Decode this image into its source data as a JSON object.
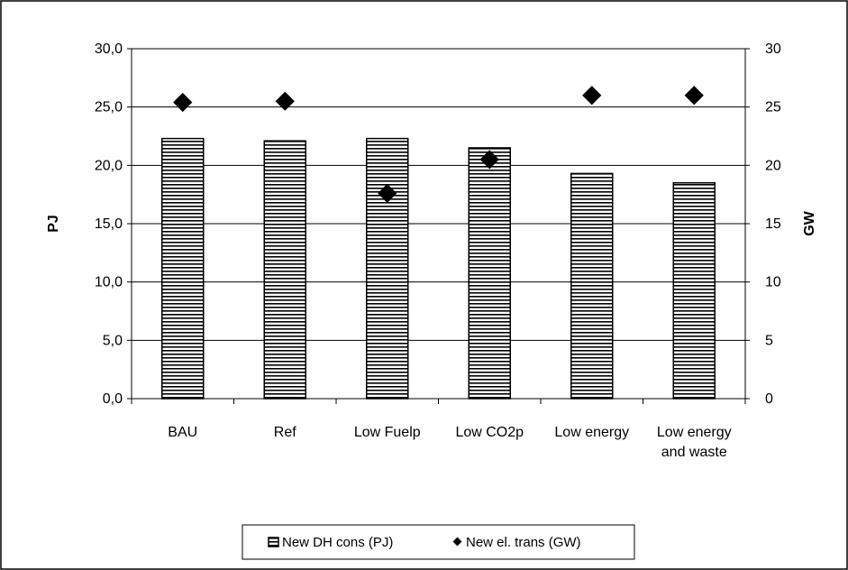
{
  "chart_data": {
    "type": "bar",
    "categories": [
      "BAU",
      "Ref",
      "Low Fuelp",
      "Low CO2p",
      "Low energy",
      "Low energy and waste"
    ],
    "category_lines": [
      [
        "BAU"
      ],
      [
        "Ref"
      ],
      [
        "Low Fuelp"
      ],
      [
        "Low CO2p"
      ],
      [
        "Low energy"
      ],
      [
        "Low energy",
        "and waste"
      ]
    ],
    "series": [
      {
        "name": "New DH cons (PJ)",
        "kind": "bar",
        "axis": "left",
        "values": [
          22.3,
          22.1,
          22.3,
          21.5,
          19.3,
          18.5
        ]
      },
      {
        "name": "New el. trans (GW)",
        "kind": "marker",
        "axis": "right",
        "values": [
          25.4,
          25.5,
          17.6,
          20.5,
          26.0,
          26.0
        ]
      }
    ],
    "ylabel": "PJ",
    "y2label": "GW",
    "ylim": [
      0,
      30
    ],
    "y2lim": [
      0,
      30
    ],
    "yticks": [
      "0,0",
      "5,0",
      "10,0",
      "15,0",
      "20,0",
      "25,0",
      "30,0"
    ],
    "y2ticks": [
      "0",
      "5",
      "10",
      "15",
      "20",
      "25",
      "30"
    ],
    "grid": true,
    "legend_position": "bottom",
    "colors": {
      "bar_fill": "#ffffff",
      "bar_stripe": "#000000",
      "marker": "#000000",
      "grid": "#000000",
      "border": "#000000"
    }
  }
}
